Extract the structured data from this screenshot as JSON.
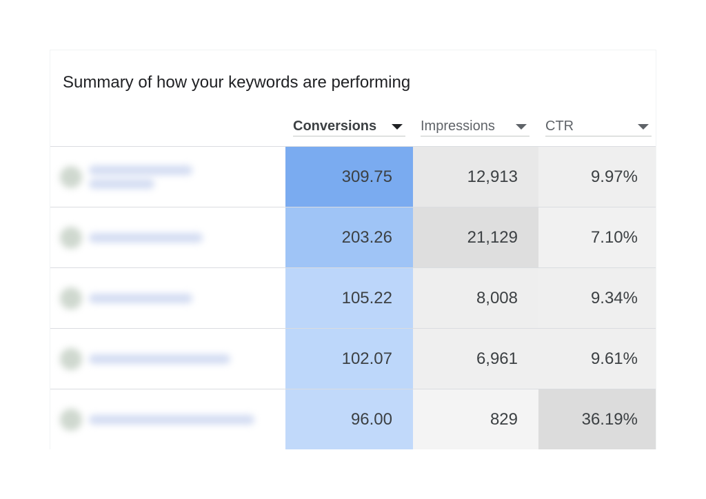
{
  "title": "Summary of how your keywords are performing",
  "columns": {
    "conversions": "Conversions",
    "impressions": "Impressions",
    "ctr": "CTR"
  },
  "rows": [
    {
      "conversions": "309.75",
      "impressions": "12,913",
      "ctr": "9.97%",
      "conv_color": "#7aabf0",
      "imp_color": "#e8e8e8",
      "ctr_color": "#efefef"
    },
    {
      "conversions": "203.26",
      "impressions": "21,129",
      "ctr": "7.10%",
      "conv_color": "#9fc4f6",
      "imp_color": "#dedede",
      "ctr_color": "#f1f1f1"
    },
    {
      "conversions": "105.22",
      "impressions": "8,008",
      "ctr": "9.34%",
      "conv_color": "#bcd6fa",
      "imp_color": "#eeeeee",
      "ctr_color": "#efefef"
    },
    {
      "conversions": "102.07",
      "impressions": "6,961",
      "ctr": "9.61%",
      "conv_color": "#bdd7fa",
      "imp_color": "#efefef",
      "ctr_color": "#efefef"
    },
    {
      "conversions": "96.00",
      "impressions": "829",
      "ctr": "36.19%",
      "conv_color": "#c1d9fa",
      "imp_color": "#f4f4f4",
      "ctr_color": "#dcdcdc"
    }
  ],
  "colors": {
    "conversions_accent": "#7aabf0",
    "neutral_cell": "#efefef",
    "text": "#3c4043"
  }
}
